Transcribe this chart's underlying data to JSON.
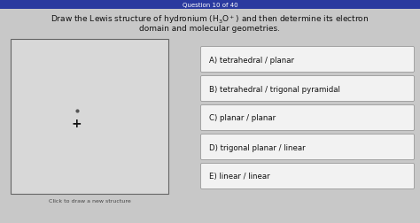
{
  "header_text": "Question 10 of 40",
  "header_bg": "#2a3a9f",
  "bg_color": "#c8c8c8",
  "draw_box_bg": "#d8d8d8",
  "draw_box_border": "#666666",
  "plus_symbol": "+",
  "dot_symbol": "·",
  "click_text": "Click to draw a new structure",
  "title_line1": "Draw the Lewis structure of hydronium (H₃O⁺) and then determine its electron",
  "title_line2": "domain and molecular geometries.",
  "options": [
    "A) tetrahedral / planar",
    "B) tetrahedral / trigonal pyramidal",
    "C) planar / planar",
    "D) trigonal planar / linear",
    "E) linear / linear"
  ],
  "option_box_bg": "#f2f2f2",
  "option_box_border": "#999999",
  "text_color": "#111111",
  "title_fontsize": 6.5,
  "option_fontsize": 6.2,
  "click_fontsize": 4.5,
  "header_fontsize": 5.0
}
